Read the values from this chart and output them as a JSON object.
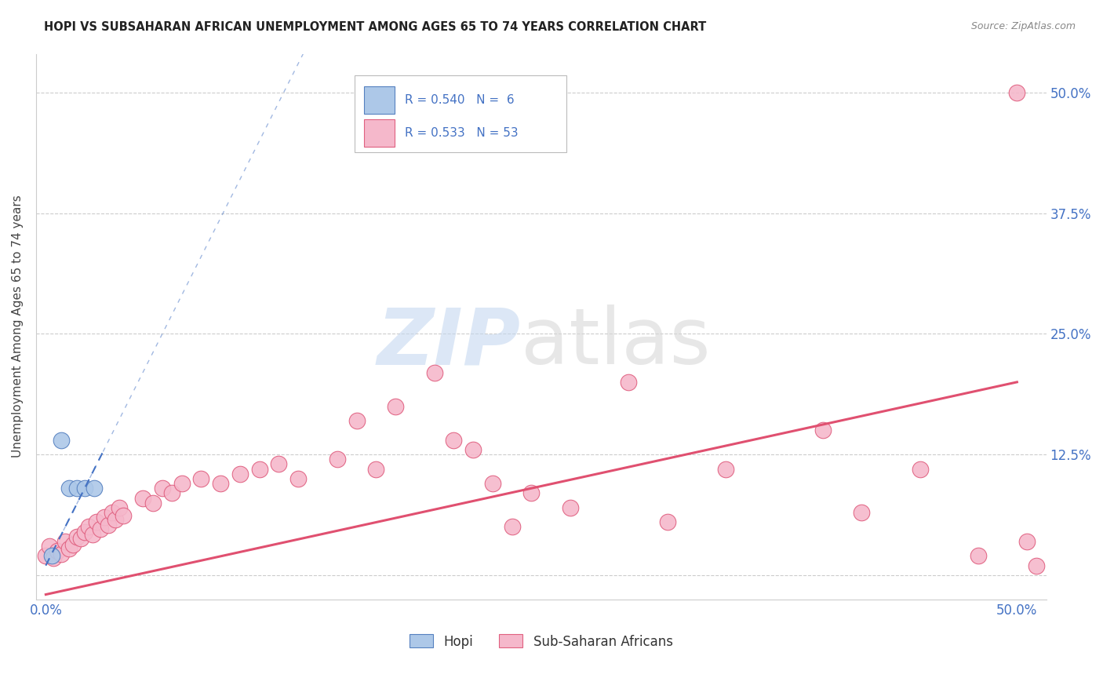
{
  "title": "HOPI VS SUBSAHARAN AFRICAN UNEMPLOYMENT AMONG AGES 65 TO 74 YEARS CORRELATION CHART",
  "source": "Source: ZipAtlas.com",
  "ylabel": "Unemployment Among Ages 65 to 74 years",
  "xlim": [
    -0.005,
    0.515
  ],
  "ylim": [
    -0.025,
    0.54
  ],
  "xtick_positions": [
    0.0,
    0.5
  ],
  "xtick_labels": [
    "0.0%",
    "50.0%"
  ],
  "ytick_values": [
    0.0,
    0.125,
    0.25,
    0.375,
    0.5
  ],
  "ytick_labels": [
    "",
    "12.5%",
    "25.0%",
    "37.5%",
    "50.0%"
  ],
  "hopi_R": 0.54,
  "hopi_N": 6,
  "ssa_R": 0.533,
  "ssa_N": 53,
  "hopi_color": "#adc8e8",
  "ssa_color": "#f5b8cb",
  "hopi_edge_color": "#5580c0",
  "ssa_edge_color": "#e06080",
  "hopi_line_color": "#4472c4",
  "ssa_line_color": "#e05070",
  "legend_text_color": "#4472c4",
  "hopi_scatter_x": [
    0.003,
    0.008,
    0.012,
    0.016,
    0.02,
    0.025
  ],
  "hopi_scatter_y": [
    0.02,
    0.14,
    0.09,
    0.09,
    0.09,
    0.09
  ],
  "hopi_line_x0": 0.0,
  "hopi_line_x1": 0.03,
  "hopi_line_slope": 4.0,
  "hopi_line_intercept": 0.01,
  "ssa_line_x0": 0.0,
  "ssa_line_x1": 0.5,
  "ssa_line_slope": 0.44,
  "ssa_line_intercept": -0.02,
  "ssa_scatter_x": [
    0.0,
    0.002,
    0.004,
    0.006,
    0.008,
    0.01,
    0.012,
    0.014,
    0.016,
    0.018,
    0.02,
    0.022,
    0.024,
    0.026,
    0.028,
    0.03,
    0.032,
    0.034,
    0.036,
    0.038,
    0.04,
    0.05,
    0.055,
    0.06,
    0.065,
    0.07,
    0.08,
    0.09,
    0.1,
    0.11,
    0.12,
    0.13,
    0.15,
    0.16,
    0.17,
    0.18,
    0.2,
    0.21,
    0.22,
    0.23,
    0.24,
    0.25,
    0.27,
    0.3,
    0.32,
    0.35,
    0.4,
    0.42,
    0.45,
    0.48,
    0.5,
    0.505,
    0.51
  ],
  "ssa_scatter_y": [
    0.02,
    0.03,
    0.018,
    0.025,
    0.022,
    0.035,
    0.028,
    0.032,
    0.04,
    0.038,
    0.045,
    0.05,
    0.042,
    0.055,
    0.048,
    0.06,
    0.052,
    0.065,
    0.058,
    0.07,
    0.062,
    0.08,
    0.075,
    0.09,
    0.085,
    0.095,
    0.1,
    0.095,
    0.105,
    0.11,
    0.115,
    0.1,
    0.12,
    0.16,
    0.11,
    0.175,
    0.21,
    0.14,
    0.13,
    0.095,
    0.05,
    0.085,
    0.07,
    0.2,
    0.055,
    0.11,
    0.15,
    0.065,
    0.11,
    0.02,
    0.5,
    0.035,
    0.01
  ],
  "watermark_zip_color": "#c5d8f0",
  "watermark_atlas_color": "#d8d8d8",
  "background_color": "#ffffff",
  "grid_color": "#cccccc",
  "spine_color": "#cccccc"
}
